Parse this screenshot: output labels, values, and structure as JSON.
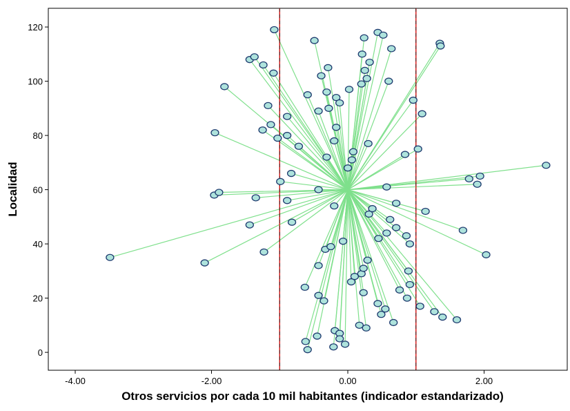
{
  "chart_data": {
    "type": "spoke-scatter",
    "x_label": "Otros servicios por cada 10 mil habitantes (indicador estandarizado)",
    "y_label": "Localidad",
    "xlim": [
      -4.395,
      3.22
    ],
    "ylim": [
      -6.6,
      126.9
    ],
    "xticks": [
      {
        "value": -4,
        "label": "-4.00"
      },
      {
        "value": -2,
        "label": "-2.00"
      },
      {
        "value": 0,
        "label": "0.00"
      },
      {
        "value": 2,
        "label": "2.00"
      }
    ],
    "yticks": [
      0,
      20,
      40,
      60,
      80,
      100,
      120
    ],
    "reference_lines": [
      -1,
      1
    ],
    "reference_color": "#d62020",
    "centroid": {
      "x": 0,
      "y": 60
    },
    "point_color": "#aee3dc",
    "point_edge": "#1d3a6e",
    "spoke_color": "#7fe08c",
    "x": [
      -3.49,
      -2.1,
      -1.96,
      -1.89,
      -1.95,
      -1.81,
      -1.44,
      -1.35,
      -1.23,
      -1.25,
      -1.13,
      -1.17,
      -1.44,
      -1.37,
      -1.24,
      -1.09,
      -1.08,
      -1.03,
      -0.99,
      -0.89,
      -0.83,
      -0.82,
      -0.89,
      -0.89,
      -0.72,
      -0.63,
      -0.62,
      -0.59,
      -0.59,
      -0.49,
      -0.45,
      -0.43,
      -0.43,
      -0.43,
      -0.43,
      -0.39,
      -0.35,
      -0.33,
      -0.31,
      -0.31,
      -0.29,
      -0.28,
      -0.25,
      -0.21,
      -0.19,
      -0.2,
      -0.2,
      -0.17,
      -0.17,
      -0.12,
      -0.12,
      -0.12,
      -0.07,
      -0.04,
      0.0,
      0.02,
      0.06,
      0.08,
      0.05,
      0.1,
      0.17,
      0.2,
      0.2,
      0.21,
      0.23,
      0.23,
      0.24,
      0.25,
      0.27,
      0.28,
      0.29,
      0.3,
      0.31,
      0.32,
      0.36,
      0.44,
      0.44,
      0.45,
      0.49,
      0.52,
      0.55,
      0.57,
      0.57,
      0.6,
      0.62,
      0.64,
      0.67,
      0.71,
      0.71,
      0.76,
      0.84,
      0.86,
      0.87,
      0.89,
      0.91,
      0.91,
      0.96,
      1.03,
      1.06,
      1.09,
      1.14,
      1.27,
      1.35,
      1.36,
      1.39,
      1.6,
      1.69,
      1.78,
      1.9,
      1.94,
      2.03,
      2.91
    ],
    "y": [
      35,
      33,
      58,
      59,
      81,
      98,
      47,
      57,
      37,
      82,
      84,
      91,
      108,
      109,
      106,
      103,
      119,
      79,
      63,
      56,
      66,
      48,
      80,
      87,
      76,
      24,
      4,
      1,
      95,
      115,
      6,
      21,
      32,
      60,
      89,
      102,
      19,
      38,
      72,
      96,
      105,
      90,
      39,
      2,
      8,
      54,
      78,
      83,
      94,
      7,
      5,
      92,
      41,
      3,
      68,
      97,
      71,
      74,
      26,
      28,
      10,
      99,
      29,
      110,
      31,
      22,
      116,
      104,
      9,
      101,
      34,
      77,
      51,
      107,
      53,
      18,
      118,
      42,
      14,
      117,
      16,
      44,
      61,
      100,
      49,
      112,
      11,
      55,
      46,
      23,
      73,
      43,
      20,
      30,
      40,
      25,
      93,
      75,
      17,
      88,
      52,
      15,
      114,
      113,
      13,
      12,
      45,
      64,
      62,
      65,
      36,
      69
    ]
  }
}
